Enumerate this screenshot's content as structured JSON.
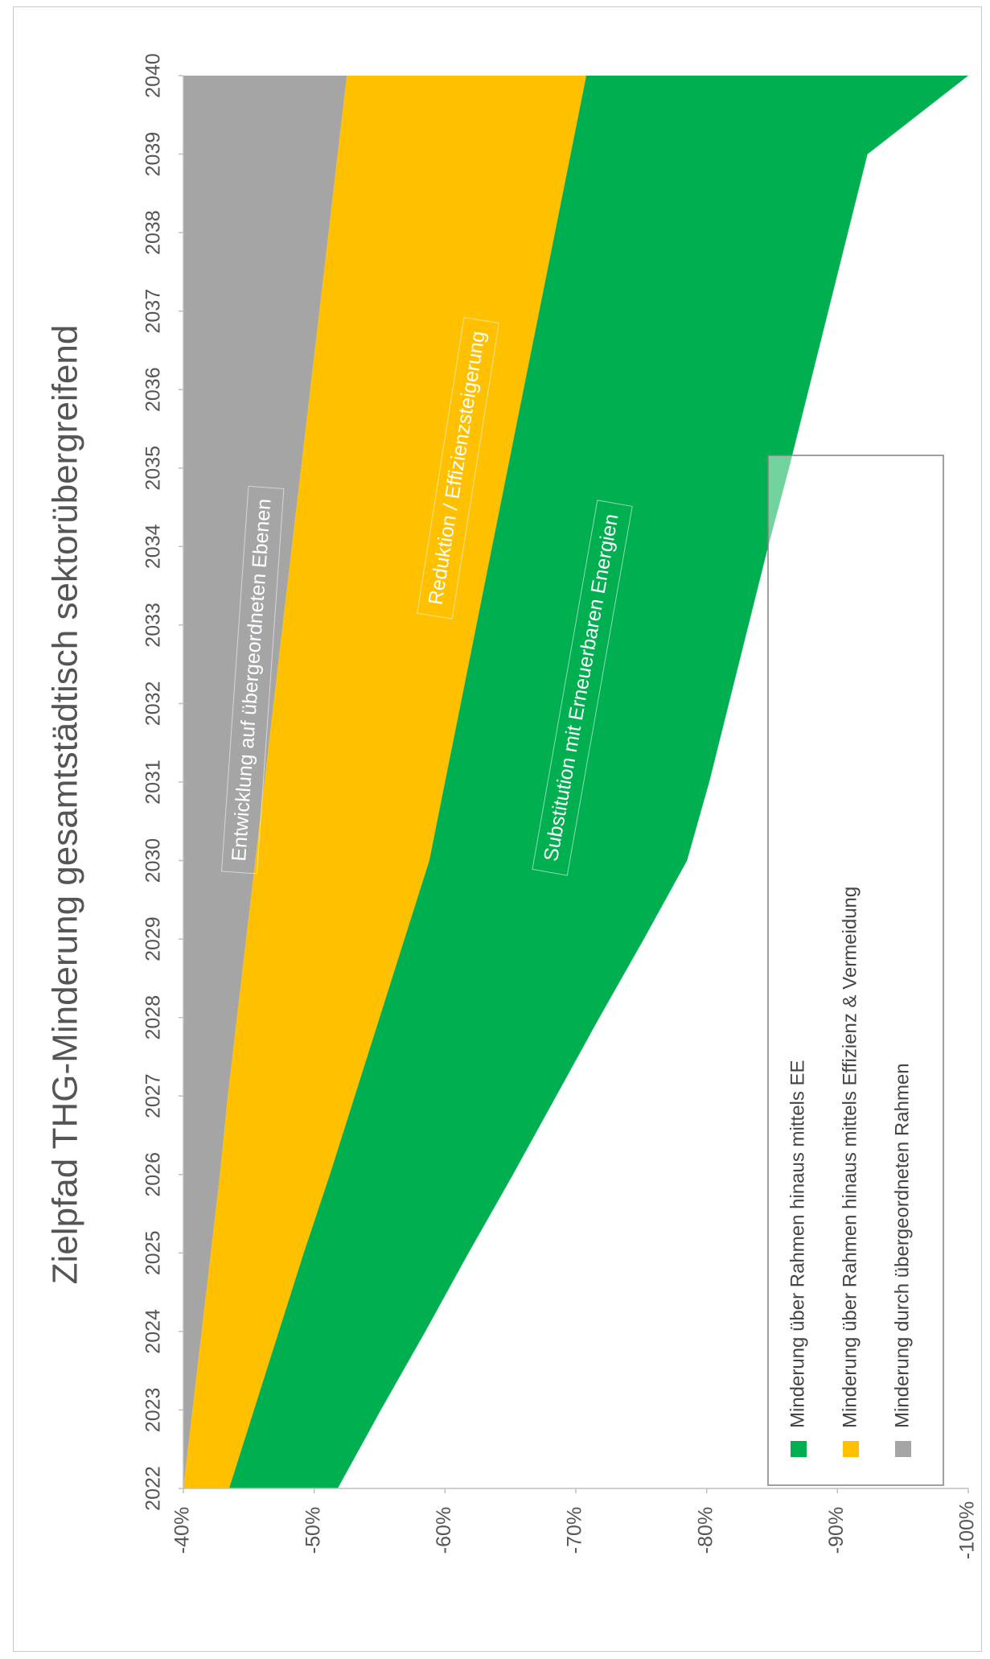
{
  "chart_data": {
    "type": "area",
    "orientation": "rotated-90-clockwise",
    "title": "Zielpfad THG-Minderung gesamtstädtisch sektorübergreifend",
    "xlabel": "",
    "ylabel": "",
    "x": [
      2022,
      2023,
      2024,
      2025,
      2026,
      2027,
      2028,
      2029,
      2030,
      2031,
      2032,
      2033,
      2034,
      2035,
      2036,
      2037,
      2038,
      2039,
      2040
    ],
    "x_tick_labels": [
      "2022",
      "2023",
      "2024",
      "2025",
      "2026",
      "2027",
      "2028",
      "2029",
      "2030",
      "2031",
      "2032",
      "2033",
      "2034",
      "2035",
      "2036",
      "2037",
      "2038",
      "2039",
      "2040"
    ],
    "y_tick_labels": [
      "-40%",
      "-50%",
      "-60%",
      "-70%",
      "-80%",
      "-90%",
      "-100%"
    ],
    "ylim": [
      -100,
      -40
    ],
    "boundaries": [
      {
        "key": "grey_lower",
        "values": [
          -40.0,
          -40.7,
          -41.4,
          -42.1,
          -42.8,
          -43.4,
          -44.1,
          -44.8,
          -45.5,
          -46.2,
          -46.9,
          -47.6,
          -48.3,
          -49.0,
          -49.7,
          -50.4,
          -51.1,
          -51.8,
          -52.5
        ]
      },
      {
        "key": "yellow_lower",
        "values": [
          -43.5,
          -45.4,
          -47.3,
          -49.2,
          -51.2,
          -53.1,
          -55.0,
          -56.9,
          -58.8,
          -60.0,
          -61.2,
          -62.4,
          -63.6,
          -64.8,
          -66.0,
          -67.2,
          -68.4,
          -69.6,
          -70.8
        ]
      },
      {
        "key": "green_lower",
        "values": [
          -51.8,
          -55.1,
          -58.5,
          -61.8,
          -65.2,
          -68.5,
          -71.8,
          -75.2,
          -78.5,
          -80.2,
          -81.7,
          -83.2,
          -84.7,
          -86.3,
          -87.8,
          -89.3,
          -90.8,
          -92.3,
          -100.0
        ]
      }
    ],
    "series": [
      {
        "name": "Minderung durch übergeordneten Rahmen",
        "color": "#a5a5a5",
        "from": -40,
        "to": "grey_lower"
      },
      {
        "name": "Minderung  über Rahmen hinaus mittels Effizienz & Vermeidung",
        "color": "#ffc000",
        "from": "grey_lower",
        "to": "yellow_lower"
      },
      {
        "name": "Minderung  über Rahmen hinaus mittels EE",
        "color": "#00b050",
        "from": "yellow_lower",
        "to": "green_lower"
      }
    ],
    "legend_entries": [
      {
        "label": "Minderung  über Rahmen hinaus mittels EE",
        "color": "#00b050"
      },
      {
        "label": "Minderung  über Rahmen hinaus mittels Effizienz & Vermeidung",
        "color": "#ffc000"
      },
      {
        "label": "Minderung durch übergeordneten Rahmen",
        "color": "#a5a5a5"
      }
    ],
    "legend_position": "bottom-right",
    "annotations": [
      {
        "text": "Entwicklung auf übergeordneten Ebenen",
        "x": 2032.3,
        "y": -45.3,
        "angle": -86
      },
      {
        "text": "Reduktion / Effizienzsteigerung",
        "x": 2035.0,
        "y": -61.0,
        "angle": -81
      },
      {
        "text": "Substitution mit Erneuerbaren Energien",
        "x": 2032.2,
        "y": -70.5,
        "angle": -80
      }
    ],
    "grid": false
  }
}
